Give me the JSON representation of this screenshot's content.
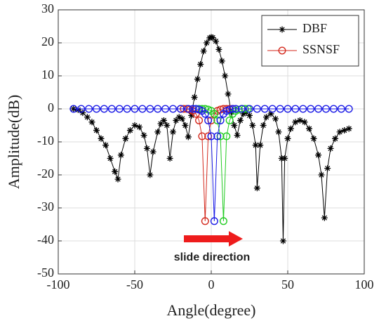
{
  "chart_data": {
    "type": "line",
    "xlabel": "Angle(degree)",
    "ylabel": "Amplitude(dB)",
    "xlim": [
      -100,
      100
    ],
    "xticks": [
      -100,
      -50,
      0,
      50,
      100
    ],
    "ylim": [
      -50,
      30
    ],
    "yticks": [
      -50,
      -40,
      -30,
      -20,
      -10,
      0,
      10,
      20,
      30
    ],
    "grid": true,
    "legend": "upper right",
    "annotation": "slide direction",
    "series": [
      {
        "name": "DBF",
        "color": "#000000",
        "marker": "asterisk",
        "x": [
          -90,
          -87,
          -84,
          -81,
          -78,
          -75,
          -72,
          -69,
          -66,
          -63,
          -61,
          -59,
          -56,
          -53,
          -50,
          -47,
          -44,
          -42,
          -40,
          -38,
          -35,
          -33,
          -31,
          -29,
          -27,
          -25,
          -23,
          -21,
          -19,
          -17,
          -15,
          -13,
          -11,
          -9,
          -7,
          -5,
          -3,
          -1,
          0,
          1,
          3,
          5,
          7,
          9,
          11,
          13,
          15,
          17,
          19,
          21,
          23,
          25,
          27,
          29,
          30,
          32,
          34,
          36,
          39,
          42,
          44,
          46,
          47,
          48,
          50,
          52,
          55,
          58,
          61,
          64,
          67,
          70,
          72,
          74,
          76,
          78,
          81,
          84,
          87,
          90
        ],
        "values": [
          0,
          -0.3,
          -1.2,
          -2.5,
          -4,
          -6.5,
          -9,
          -11,
          -15,
          -19,
          -21.3,
          -14,
          -9,
          -6.5,
          -5,
          -5.5,
          -8,
          -12,
          -20,
          -13,
          -7,
          -4.5,
          -3.5,
          -5,
          -15,
          -7,
          -3.5,
          -2.5,
          -3,
          -5,
          -8.5,
          -2,
          3.5,
          9,
          13.5,
          17.5,
          20,
          21.5,
          21.7,
          21.6,
          20.5,
          18,
          14.5,
          10,
          4.5,
          -1,
          -5,
          -8,
          -3.5,
          -1.5,
          -1,
          -2,
          -5,
          -11,
          -24,
          -11,
          -5,
          -2.5,
          -1.5,
          -3,
          -7,
          -15,
          -40,
          -15,
          -9,
          -6,
          -4,
          -3.5,
          -4,
          -6,
          -9,
          -14,
          -20,
          -33,
          -18,
          -12,
          -9,
          -7,
          -6.5,
          -6
        ]
      },
      {
        "name": "SSNSF",
        "color": "#d42a1e",
        "marker": "circle",
        "x": [
          -20,
          -18,
          -16,
          -14,
          -12,
          -10,
          -8,
          -6,
          -4,
          -2,
          0,
          2,
          4,
          6,
          8,
          10,
          12,
          14
        ],
        "values": [
          0,
          0,
          0,
          -0.2,
          -0.6,
          -1.5,
          -3.5,
          -8.3,
          -34,
          -8.3,
          -3.5,
          -1.5,
          -0.6,
          -0.2,
          0,
          0,
          0,
          0
        ]
      },
      {
        "color": "#22cc22",
        "marker": "circle",
        "x": [
          -8,
          -6,
          -4,
          -2,
          0,
          2,
          4,
          6,
          8,
          10,
          12,
          14,
          16,
          18,
          20,
          22,
          24
        ],
        "values": [
          0,
          0,
          0,
          -0.2,
          -0.6,
          -1.5,
          -3.5,
          -8.3,
          -34,
          -8.3,
          -3.5,
          -1.5,
          -0.6,
          -0.2,
          0,
          0,
          0
        ]
      },
      {
        "color": "#1a1ae6",
        "marker": "circle",
        "x": [
          -90,
          -85,
          -80,
          -75,
          -70,
          -65,
          -60,
          -55,
          -50,
          -45,
          -40,
          -35,
          -30,
          -25,
          -20,
          -15,
          -12,
          -10,
          -8,
          -6,
          -4,
          -2,
          0,
          2,
          4,
          6,
          8,
          10,
          12,
          14,
          16,
          20,
          25,
          30,
          35,
          40,
          45,
          50,
          55,
          60,
          65,
          70,
          75,
          80,
          85,
          90
        ],
        "values": [
          0,
          0,
          0,
          0,
          0,
          0,
          0,
          0,
          0,
          0,
          0,
          0,
          0,
          0,
          0,
          0,
          0,
          0,
          -0.2,
          -0.6,
          -1.5,
          -3.5,
          -8.3,
          -34,
          -8.3,
          -3.5,
          -1.5,
          -0.6,
          -0.2,
          0,
          0,
          0,
          0,
          0,
          0,
          0,
          0,
          0,
          0,
          0,
          0,
          0,
          0,
          0,
          0,
          0
        ]
      }
    ]
  }
}
